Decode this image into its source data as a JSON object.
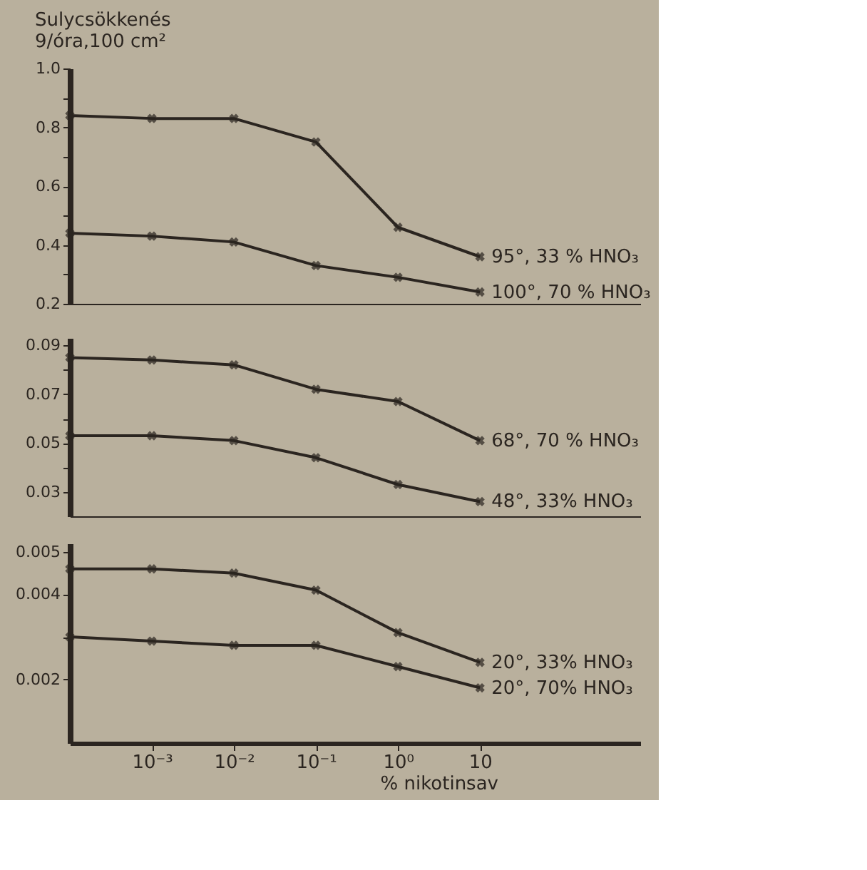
{
  "chart_data": [
    {
      "type": "line",
      "ylabel": "Sulycsökkenés\n9/óra,100 cm²",
      "log": "x",
      "marker": "cross",
      "legend": false,
      "grid": false,
      "tick_labels": "y",
      "x": [
        0.0001,
        0.001,
        0.01,
        0.1,
        1,
        10
      ],
      "xlim": [
        0.0001,
        900
      ],
      "ylim": [
        0.2,
        1.0
      ],
      "yticks": [
        {
          "value": 1.0,
          "label": "1.0"
        },
        {
          "value": 0.9,
          "label": null
        },
        0.8,
        {
          "value": 0.7,
          "label": null
        },
        0.6,
        {
          "value": 0.5,
          "label": null
        },
        0.4,
        {
          "value": 0.3,
          "label": null
        },
        0.2
      ],
      "series": [
        {
          "name": "95°, 33 % HNO₃",
          "color": "#2b2520",
          "values": [
            0.84,
            0.83,
            0.83,
            0.75,
            0.46,
            0.36
          ]
        },
        {
          "name": "100°, 70 % HNO₃",
          "color": "#2b2520",
          "values": [
            0.44,
            0.43,
            0.41,
            0.33,
            0.29,
            0.24
          ]
        }
      ]
    },
    {
      "type": "line",
      "log": "x",
      "marker": "cross",
      "legend": false,
      "grid": false,
      "tick_labels": "y",
      "x": [
        0.0001,
        0.001,
        0.01,
        0.1,
        1,
        10
      ],
      "xlim": [
        0.0001,
        900
      ],
      "ylim": [
        0.02,
        0.093
      ],
      "yticks": [
        0.09,
        {
          "value": 0.08,
          "label": null
        },
        0.07,
        {
          "value": 0.06,
          "label": null
        },
        0.05,
        {
          "value": 0.04,
          "label": null
        },
        0.03
      ],
      "series": [
        {
          "name": "68°, 70 % HNO₃",
          "color": "#2b2520",
          "values": [
            0.085,
            0.084,
            0.082,
            0.072,
            0.067,
            0.051
          ]
        },
        {
          "name": "48°, 33% HNO₃",
          "color": "#2b2520",
          "values": [
            0.053,
            0.053,
            0.051,
            0.044,
            0.033,
            0.026
          ]
        }
      ]
    },
    {
      "type": "line",
      "xlabel": "% nikotinsav",
      "log": "x",
      "marker": "cross",
      "legend": false,
      "grid": false,
      "x": [
        0.0001,
        0.001,
        0.01,
        0.1,
        1,
        10
      ],
      "xlim": [
        0.0001,
        900
      ],
      "xticks": [
        {
          "value": 0.001,
          "label": "10⁻³"
        },
        {
          "value": 0.01,
          "label": "10⁻²"
        },
        {
          "value": 0.1,
          "label": "10⁻¹"
        },
        {
          "value": 1,
          "label": "10⁰"
        },
        10
      ],
      "ylim": [
        0.0005,
        0.0052
      ],
      "yticks": [
        0.005,
        0.004,
        {
          "value": 0.003,
          "label": null
        },
        0.002
      ],
      "series": [
        {
          "name": "20°, 33% HNO₃",
          "color": "#2b2520",
          "values": [
            0.0046,
            0.0046,
            0.0045,
            0.0041,
            0.0031,
            0.0024
          ]
        },
        {
          "name": "20°, 70% HNO₃",
          "color": "#2b2520",
          "values": [
            0.003,
            0.0029,
            0.0028,
            0.0028,
            0.0023,
            0.0018
          ]
        }
      ]
    }
  ]
}
